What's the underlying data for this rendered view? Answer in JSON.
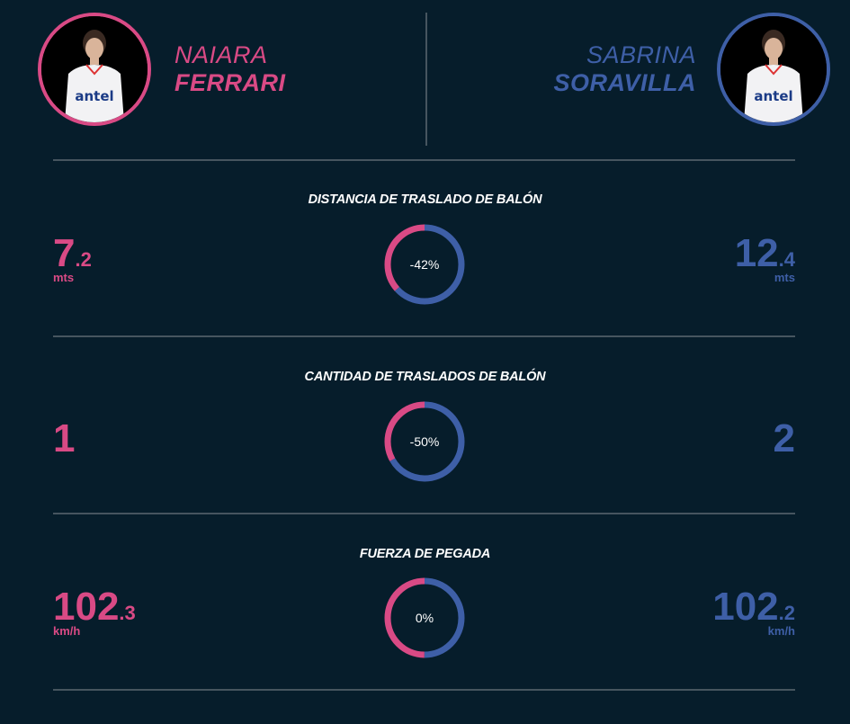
{
  "players": {
    "left": {
      "first": "NAIARA",
      "last": "FERRARI",
      "color": "#d94a85",
      "shirt_text": "antel"
    },
    "right": {
      "first": "SABRINA",
      "last": "SORAVILLA",
      "color": "#3e5fa7",
      "shirt_text": "antel"
    }
  },
  "stats": [
    {
      "title": "DISTANCIA DE TRASLADO DE BALÓN",
      "left": {
        "int": "7",
        "dec": ".2",
        "unit": "mts"
      },
      "right": {
        "int": "12",
        "dec": ".4",
        "unit": "mts"
      },
      "diff": "-42%",
      "left_share": 0.367
    },
    {
      "title": "CANTIDAD DE TRASLADOS DE BALÓN",
      "left": {
        "int": "1",
        "dec": "",
        "unit": ""
      },
      "right": {
        "int": "2",
        "dec": "",
        "unit": ""
      },
      "diff": "-50%",
      "left_share": 0.333
    },
    {
      "title": "FUERZA DE PEGADA",
      "left": {
        "int": "102",
        "dec": ".3",
        "unit": "km/h"
      },
      "right": {
        "int": "102",
        "dec": ".2",
        "unit": "km/h"
      },
      "diff": "0%",
      "left_share": 0.5
    }
  ]
}
